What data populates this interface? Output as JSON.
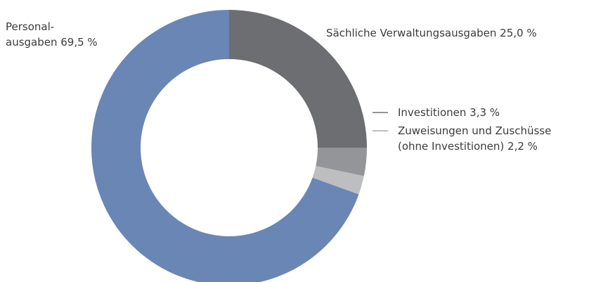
{
  "chart_data": {
    "type": "donut",
    "categories": [
      [
        "Sächliche Verwaltungsausgaben"
      ],
      [
        "Investitionen"
      ],
      [
        "Zuweisungen und Zuschüsse",
        "(ohne Investitionen)"
      ],
      [
        "Personal-",
        "ausgaben"
      ]
    ],
    "values": [
      25.0,
      3.3,
      2.2,
      69.5
    ],
    "value_labels": [
      "25,0 %",
      "3,3 %",
      "2,2 %",
      "69,5 %"
    ],
    "colors": [
      "#6d6e71",
      "#939598",
      "#bcbec0",
      "#6a86b5"
    ]
  }
}
